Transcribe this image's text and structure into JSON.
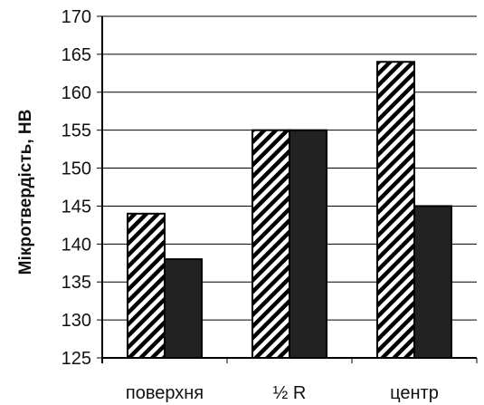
{
  "chart_data": {
    "type": "bar",
    "title": "",
    "xlabel": "",
    "ylabel": "Мікротвердість, НВ",
    "categories": [
      "поверхня",
      "½ R",
      "центр"
    ],
    "series": [
      {
        "values": [
          144,
          155,
          164
        ],
        "fill": "hatched",
        "color": "#000000"
      },
      {
        "values": [
          138,
          155,
          145
        ],
        "fill": "solid",
        "color": "#222222"
      }
    ],
    "ylim": [
      125,
      170
    ],
    "yticks": [
      "125",
      "130",
      "135",
      "140",
      "145",
      "150",
      "155",
      "160",
      "165",
      "170"
    ],
    "grid": true,
    "legend": "none"
  }
}
